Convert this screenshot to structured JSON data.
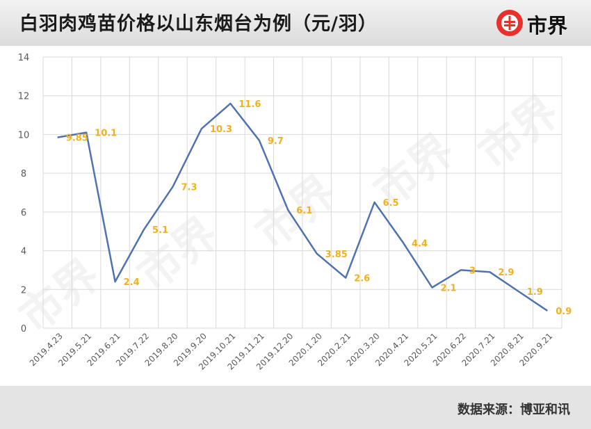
{
  "header": {
    "title": "白羽肉鸡苗价格以山东烟台为例（元/羽）"
  },
  "logo": {
    "text": "市界"
  },
  "watermark": {
    "text": "市界"
  },
  "footer": {
    "source": "数据来源：博亚和讯"
  },
  "colors": {
    "line": "#4f72b3",
    "label": "#f2b01e",
    "grid": "#d9d9d9",
    "accent": "#e8312a"
  },
  "chart_data": {
    "type": "line",
    "title": "白羽肉鸡苗价格以山东烟台为例（元/羽）",
    "xlabel": "",
    "ylabel": "",
    "x": [
      "2019.4.23",
      "2019.5.21",
      "2019.6.21",
      "2019.7.22",
      "2019.8.20",
      "2019.9.20",
      "2019.10.21",
      "2019.11.21",
      "2019.12.20",
      "2020.1.20",
      "2020.2.21",
      "2020.3.20",
      "2020.4.21",
      "2020.5.21",
      "2020.6.22",
      "2020.7.21",
      "2020.8.21",
      "2020.9.21"
    ],
    "values": [
      9.85,
      10.1,
      2.4,
      5.1,
      7.3,
      10.3,
      11.6,
      9.7,
      6.1,
      3.85,
      2.6,
      6.5,
      4.4,
      2.1,
      3,
      2.9,
      1.9,
      0.9
    ],
    "labels": [
      "9.85",
      "10.1",
      "2.4",
      "5.1",
      "7.3",
      "10.3",
      "11.6",
      "9.7",
      "6.1",
      "3.85",
      "2.6",
      "6.5",
      "4.4",
      "2.1",
      "3",
      "2.9",
      "1.9",
      "0.9"
    ],
    "yticks": [
      "0",
      "2",
      "4",
      "6",
      "8",
      "10",
      "12",
      "14"
    ],
    "ylim": [
      0,
      14
    ],
    "grid": true,
    "legend": "none"
  }
}
